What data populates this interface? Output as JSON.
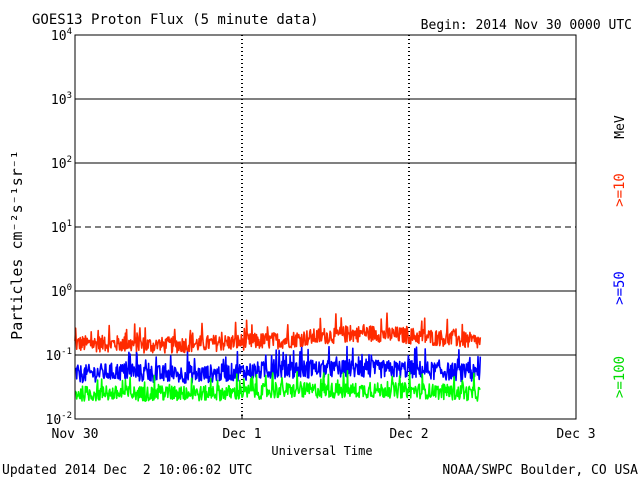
{
  "header": {
    "title": "GOES13 Proton Flux (5 minute data)",
    "begin": "Begin: 2014 Nov 30 0000 UTC"
  },
  "footer": {
    "updated": "Updated 2014 Dec  2 10:06:02 UTC",
    "credit": "NOAA/SWPC Boulder, CO USA"
  },
  "colors": {
    "ge10": "#ff2a00",
    "ge50": "#0000ff",
    "ge100": "#00ff00",
    "axis": "#000000"
  },
  "chart_data": {
    "type": "line",
    "title": "GOES13 Proton Flux (5 minute data)",
    "xlabel": "Universal Time",
    "ylabel": "Particles cm⁻²s⁻¹sr⁻¹",
    "yscale": "log",
    "ylim": [
      0.01,
      10000
    ],
    "xlim_days": [
      0,
      3
    ],
    "x_ticks": [
      "Nov 30",
      "Dec 1",
      "Dec 2",
      "Dec 3"
    ],
    "y_ticks": [
      {
        "base": "10",
        "exp": "-2"
      },
      {
        "base": "10",
        "exp": "-1"
      },
      {
        "base": "10",
        "exp": "0"
      },
      {
        "base": "10",
        "exp": "1"
      },
      {
        "base": "10",
        "exp": "2"
      },
      {
        "base": "10",
        "exp": "3"
      },
      {
        "base": "10",
        "exp": "4"
      }
    ],
    "grid": "horizontal lines at each decade; dashed at 10^1",
    "energy_unit": "MeV",
    "data_end_day": 2.43,
    "series": [
      {
        "name": ">=10",
        "color": "#ff2a00",
        "x_days": [
          0.0,
          0.25,
          0.5,
          0.75,
          1.0,
          1.25,
          1.5,
          1.75,
          2.0,
          2.25,
          2.43
        ],
        "values": [
          0.15,
          0.15,
          0.14,
          0.15,
          0.16,
          0.17,
          0.2,
          0.22,
          0.2,
          0.18,
          0.16
        ]
      },
      {
        "name": ">=50",
        "color": "#0000ff",
        "x_days": [
          0.0,
          0.25,
          0.5,
          0.75,
          1.0,
          1.25,
          1.5,
          1.75,
          2.0,
          2.25,
          2.43
        ],
        "values": [
          0.05,
          0.055,
          0.05,
          0.05,
          0.055,
          0.06,
          0.06,
          0.06,
          0.06,
          0.055,
          0.05
        ]
      },
      {
        "name": ">=100",
        "color": "#00ff00",
        "x_days": [
          0.0,
          0.25,
          0.5,
          0.75,
          1.0,
          1.25,
          1.5,
          1.75,
          2.0,
          2.25,
          2.43
        ],
        "values": [
          0.025,
          0.025,
          0.025,
          0.025,
          0.026,
          0.028,
          0.028,
          0.028,
          0.028,
          0.026,
          0.025
        ]
      }
    ]
  }
}
